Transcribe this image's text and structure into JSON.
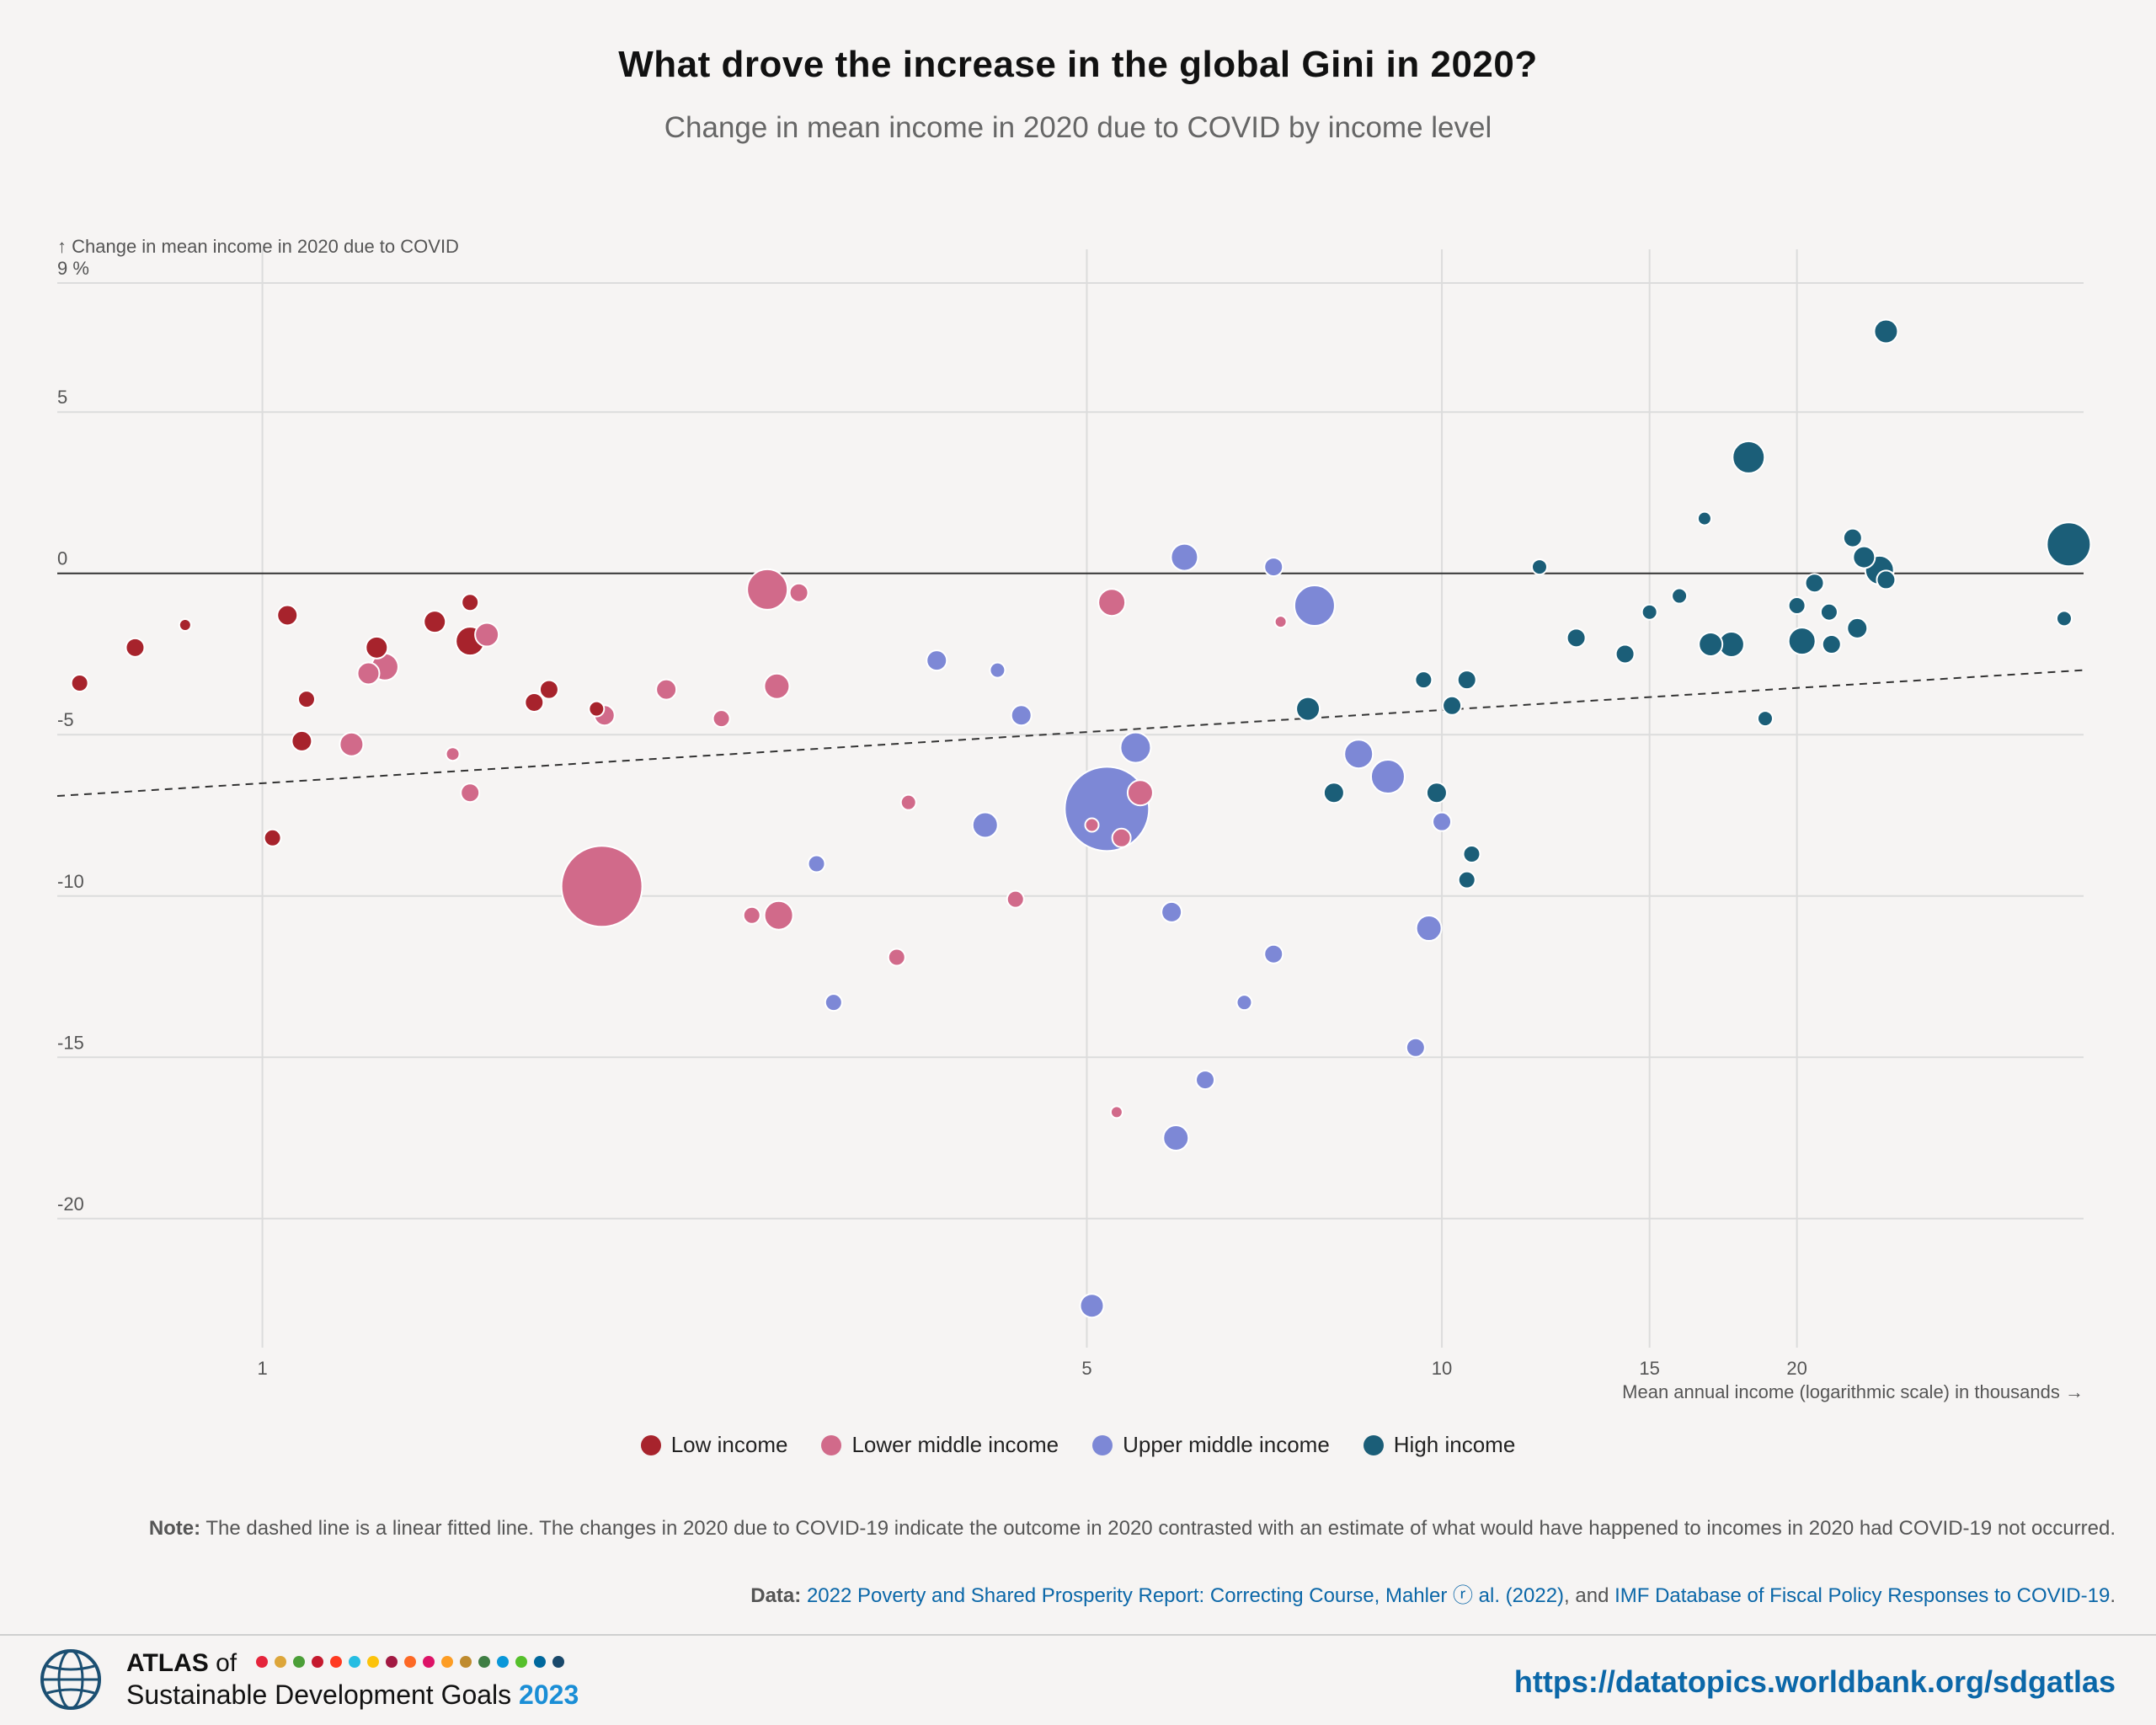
{
  "header": {
    "title": "What drove the increase in the global Gini in 2020?",
    "subtitle": "Change in mean income in 2020 due to COVID by income level"
  },
  "legend": {
    "items": [
      {
        "label": "Low income",
        "color": "#a7232c"
      },
      {
        "label": "Lower middle income",
        "color": "#d16a8a"
      },
      {
        "label": "Upper middle income",
        "color": "#7d88d6"
      },
      {
        "label": "High income",
        "color": "#1b5e78"
      }
    ]
  },
  "footnote": {
    "note_label": "Note:",
    "note_text": "The dashed line is a linear fitted line. The changes in 2020 due to COVID-19 indicate the outcome in 2020 contrasted with an estimate of what would have happened to incomes in 2020 had COVID-19 not occurred.",
    "data_label": "Data:",
    "data_link1": "2022 Poverty and Shared Prosperity Report: Correcting Course, Mahler ⓡ al. (2022)",
    "data_sep": ", and ",
    "data_link2": "IMF Database of Fiscal Policy Responses to COVID-19",
    "data_end": "."
  },
  "footer": {
    "brand_atlas": "ATLAS",
    "brand_of": " of",
    "brand_line2": "Sustainable Development Goals ",
    "brand_year": "2023",
    "url": "https://datatopics.worldbank.org/sdgatlas",
    "sdg_colors": [
      "#e5243b",
      "#dda63a",
      "#4c9f38",
      "#c5192d",
      "#ff3a21",
      "#26bde2",
      "#fcc30b",
      "#a21942",
      "#fd6925",
      "#dd1367",
      "#fd9d24",
      "#bf8b2e",
      "#3f7e44",
      "#0a97d9",
      "#56c02b",
      "#00689d",
      "#19486a"
    ]
  },
  "chart_data": {
    "type": "scatter",
    "xlabel": "Mean annual income (logarithmic scale) in thousands →",
    "ylabel": "↑ Change in mean income in 2020 due to COVID",
    "x_scale": "log",
    "xlim": [
      0.67,
      35
    ],
    "ylim": [
      -24,
      9
    ],
    "x_ticks": [
      {
        "v": 1,
        "label": "1"
      },
      {
        "v": 5,
        "label": "5"
      },
      {
        "v": 10,
        "label": "10"
      },
      {
        "v": 15,
        "label": "15"
      },
      {
        "v": 20,
        "label": "20"
      }
    ],
    "y_ticks": [
      {
        "v": 9,
        "label": "9 %"
      },
      {
        "v": 5,
        "label": "5"
      },
      {
        "v": 0,
        "label": "0"
      },
      {
        "v": -5,
        "label": "-5"
      },
      {
        "v": -10,
        "label": "-10"
      },
      {
        "v": -15,
        "label": "-15"
      },
      {
        "v": -20,
        "label": "-20"
      }
    ],
    "grid": true,
    "fit_line": {
      "x": [
        0.67,
        35
      ],
      "y": [
        -6.9,
        -3.0
      ],
      "style": "dashed"
    },
    "legend_position": "bottom-center",
    "series": [
      {
        "name": "Low income",
        "color": "#a7232c",
        "points": [
          [
            0.7,
            -3.4,
            10
          ],
          [
            0.78,
            -2.3,
            11
          ],
          [
            0.86,
            -1.6,
            7
          ],
          [
            1.02,
            -8.2,
            10
          ],
          [
            1.05,
            -1.3,
            12
          ],
          [
            1.08,
            -5.2,
            12
          ],
          [
            1.09,
            -3.9,
            10
          ],
          [
            1.25,
            -2.3,
            13
          ],
          [
            1.4,
            -1.5,
            13
          ],
          [
            1.5,
            -0.9,
            10
          ],
          [
            1.5,
            -2.1,
            17
          ],
          [
            1.7,
            -4.0,
            11
          ],
          [
            1.75,
            -3.6,
            11
          ],
          [
            1.92,
            -4.2,
            9
          ]
        ]
      },
      {
        "name": "Lower middle income",
        "color": "#d16a8a",
        "points": [
          [
            1.23,
            -3.1,
            13
          ],
          [
            1.27,
            -2.9,
            16
          ],
          [
            1.19,
            -5.3,
            14
          ],
          [
            1.45,
            -5.6,
            8
          ],
          [
            1.55,
            -1.9,
            14
          ],
          [
            1.5,
            -6.8,
            11
          ],
          [
            1.95,
            -4.4,
            12
          ],
          [
            1.94,
            -9.7,
            48
          ],
          [
            2.2,
            -3.6,
            12
          ],
          [
            2.45,
            -4.5,
            10
          ],
          [
            2.68,
            -0.5,
            24
          ],
          [
            2.85,
            -0.6,
            11
          ],
          [
            2.73,
            -3.5,
            15
          ],
          [
            2.6,
            -10.6,
            10
          ],
          [
            2.74,
            -10.6,
            17
          ],
          [
            3.53,
            -7.1,
            9
          ],
          [
            3.45,
            -11.9,
            10
          ],
          [
            4.35,
            -10.1,
            10
          ],
          [
            5.05,
            -7.8,
            8
          ],
          [
            5.25,
            -0.9,
            16
          ],
          [
            5.35,
            -8.2,
            11
          ],
          [
            5.55,
            -6.8,
            15
          ],
          [
            5.3,
            -16.7,
            7
          ],
          [
            7.3,
            -1.5,
            7
          ]
        ]
      },
      {
        "name": "Upper middle income",
        "color": "#7d88d6",
        "points": [
          [
            2.95,
            -9.0,
            10
          ],
          [
            3.05,
            -13.3,
            10
          ],
          [
            3.73,
            -2.7,
            12
          ],
          [
            4.2,
            -3.0,
            9
          ],
          [
            4.1,
            -7.8,
            15
          ],
          [
            4.4,
            -4.4,
            12
          ],
          [
            5.2,
            -7.3,
            50
          ],
          [
            5.5,
            -5.4,
            18
          ],
          [
            5.9,
            -10.5,
            12
          ],
          [
            6.05,
            0.5,
            16
          ],
          [
            6.3,
            -15.7,
            11
          ],
          [
            5.95,
            -17.5,
            15
          ],
          [
            5.05,
            -22.7,
            14
          ],
          [
            6.8,
            -13.3,
            9
          ],
          [
            7.2,
            0.2,
            11
          ],
          [
            7.2,
            -11.8,
            11
          ],
          [
            7.8,
            -1.0,
            24
          ],
          [
            8.5,
            -5.6,
            17
          ],
          [
            9.0,
            -6.3,
            20
          ],
          [
            9.5,
            -14.7,
            11
          ],
          [
            9.75,
            -11.0,
            15
          ],
          [
            10.0,
            -7.7,
            11
          ]
        ]
      },
      {
        "name": "High income",
        "color": "#1b5e78",
        "points": [
          [
            7.7,
            -4.2,
            14
          ],
          [
            8.1,
            -6.8,
            12
          ],
          [
            9.65,
            -3.3,
            10
          ],
          [
            9.9,
            -6.8,
            12
          ],
          [
            10.2,
            -4.1,
            11
          ],
          [
            10.5,
            -3.3,
            11
          ],
          [
            10.6,
            -8.7,
            10
          ],
          [
            10.5,
            -9.5,
            10
          ],
          [
            12.1,
            0.2,
            9
          ],
          [
            13.0,
            -2.0,
            11
          ],
          [
            14.3,
            -2.5,
            11
          ],
          [
            15.0,
            -1.2,
            9
          ],
          [
            15.9,
            -0.7,
            9
          ],
          [
            16.7,
            1.7,
            8
          ],
          [
            16.9,
            -2.2,
            14
          ],
          [
            17.6,
            -2.2,
            15
          ],
          [
            18.2,
            3.6,
            19
          ],
          [
            18.8,
            -4.5,
            9
          ],
          [
            20.0,
            -1.0,
            10
          ],
          [
            20.2,
            -2.1,
            16
          ],
          [
            20.7,
            -0.3,
            11
          ],
          [
            21.3,
            -1.2,
            10
          ],
          [
            21.4,
            -2.2,
            11
          ],
          [
            22.3,
            1.1,
            11
          ],
          [
            22.5,
            -1.7,
            12
          ],
          [
            22.8,
            0.5,
            13
          ],
          [
            23.5,
            0.1,
            17
          ],
          [
            23.8,
            -0.2,
            11
          ],
          [
            23.8,
            7.5,
            14
          ],
          [
            34.0,
            0.9,
            26
          ],
          [
            33.7,
            -1.4,
            9
          ]
        ]
      }
    ]
  }
}
